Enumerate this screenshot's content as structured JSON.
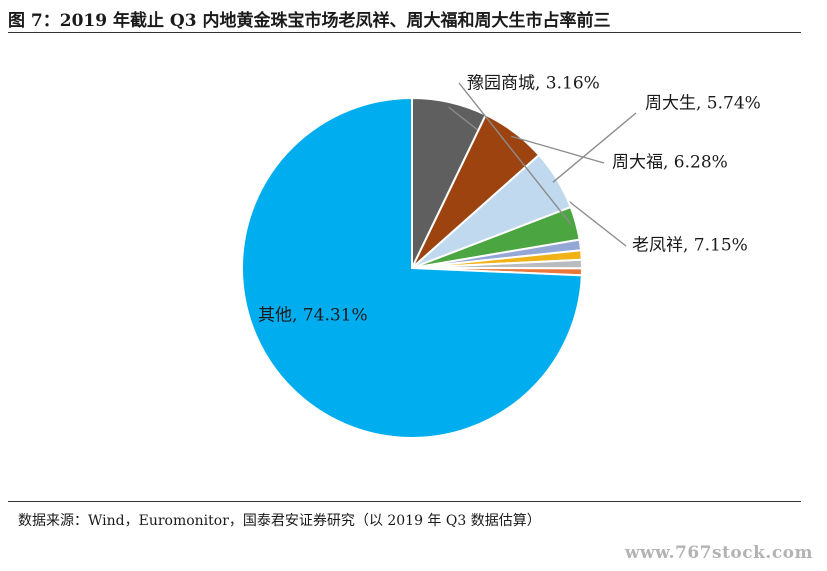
{
  "figure": {
    "title": "图 7：2019 年截止 Q3 内地黄金珠宝市场老凤祥、周大福和周大生市占率前三",
    "source": "数据来源：Wind，Euromonitor，国泰君安证券研究（以 2019 年 Q3 数据估算）",
    "watermark": "www.767stock.com"
  },
  "chart_data": {
    "type": "pie",
    "title": "",
    "slices": [
      {
        "label": "老凤祥",
        "value": 7.15,
        "display": "老凤祥, 7.15%",
        "color": "#5f5f5f"
      },
      {
        "label": "周大福",
        "value": 6.28,
        "display": "周大福, 6.28%",
        "color": "#9c4310"
      },
      {
        "label": "周大生",
        "value": 5.74,
        "display": "周大生, 5.74%",
        "color": "#c0d9ef"
      },
      {
        "label": "豫园商城",
        "value": 3.16,
        "display": "豫园商城, 3.16%",
        "color": "#4ba540"
      },
      {
        "label": "",
        "value": 1.0,
        "display": "",
        "color": "#94a7d6"
      },
      {
        "label": "",
        "value": 0.9,
        "display": "",
        "color": "#f1b217"
      },
      {
        "label": "",
        "value": 0.8,
        "display": "",
        "color": "#b9bcbf"
      },
      {
        "label": "",
        "value": 0.66,
        "display": "",
        "color": "#e9773a"
      },
      {
        "label": "其他",
        "value": 74.31,
        "display": "其他, 74.31%",
        "color": "#00adee"
      }
    ],
    "unit": "%",
    "start": "12 o'clock",
    "direction": "clockwise"
  }
}
